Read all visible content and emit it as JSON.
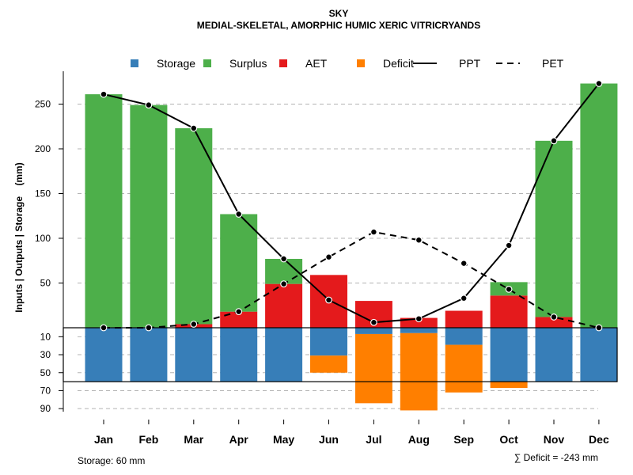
{
  "chart_data": {
    "type": "bar",
    "title": "SKY",
    "subtitle": "MEDIAL-SKELETAL, AMORPHIC HUMIC XERIC VITRICRYANDS",
    "ylabel": "Inputs | Outputs | Storage    (mm)",
    "categories": [
      "Jan",
      "Feb",
      "Mar",
      "Apr",
      "May",
      "Jun",
      "Jul",
      "Aug",
      "Sep",
      "Oct",
      "Nov",
      "Dec"
    ],
    "upper_ticks": [
      "50",
      "100",
      "150",
      "200",
      "250"
    ],
    "lower_ticks": [
      "10",
      "30",
      "50",
      "70",
      "90"
    ],
    "ylim_upper": [
      0,
      270
    ],
    "ylim_lower": [
      0,
      95
    ],
    "series": [
      {
        "name": "Storage",
        "color": "#377EB8",
        "values": [
          60,
          60,
          60,
          60,
          60,
          31,
          7,
          6,
          19,
          60,
          60,
          60
        ]
      },
      {
        "name": "Surplus",
        "color": "#4DAF4A",
        "values": [
          261,
          249,
          223,
          127,
          77,
          0,
          0,
          0,
          0,
          51,
          209,
          273
        ]
      },
      {
        "name": "AET",
        "color": "#E41A1C",
        "values": [
          0,
          0,
          4,
          18,
          49,
          59,
          30,
          11,
          19,
          36,
          12,
          0
        ]
      },
      {
        "name": "Deficit",
        "color": "#FF7F00",
        "values": [
          0,
          0,
          0,
          0,
          0,
          19,
          77,
          86,
          53,
          7,
          0,
          0
        ]
      },
      {
        "name": "PPT",
        "color": "#000000",
        "style": "solid",
        "values": [
          261,
          249,
          223,
          127,
          77,
          31,
          6,
          10,
          33,
          92,
          209,
          273
        ]
      },
      {
        "name": "PET",
        "color": "#000000",
        "style": "dashed",
        "values": [
          0,
          0,
          4,
          18,
          49,
          79,
          107,
          98,
          72,
          43,
          12,
          0
        ]
      }
    ],
    "storage_capacity": 60,
    "storage_note": "Storage: 60 mm",
    "deficit_note": "∑ Deficit = -243 mm"
  }
}
